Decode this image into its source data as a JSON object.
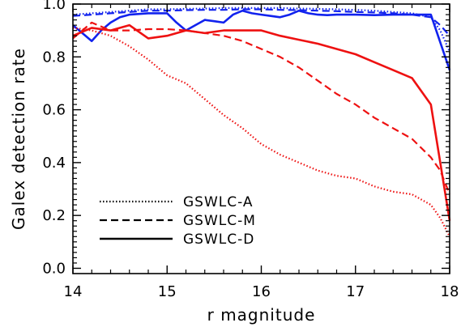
{
  "chart_data": {
    "type": "line",
    "xlabel": "r magnitude",
    "ylabel": "Galex detection rate",
    "xlim": [
      14,
      18
    ],
    "ylim": [
      -0.02,
      1.0
    ],
    "xticks": [
      14,
      15,
      16,
      17,
      18
    ],
    "yticks": [
      0.0,
      0.2,
      0.4,
      0.6,
      0.8,
      1.0
    ],
    "xtick_labels": [
      "14",
      "15",
      "16",
      "17",
      "18"
    ],
    "ytick_labels": [
      "0.0",
      "0.2",
      "0.4",
      "0.6",
      "0.8",
      "1.0"
    ],
    "legend": {
      "position": "lower-left",
      "entries": [
        {
          "label": "GSWLC-A",
          "style": "dotted"
        },
        {
          "label": "GSWLC-M",
          "style": "dashed"
        },
        {
          "label": "GSWLC-D",
          "style": "solid"
        }
      ]
    },
    "colors": {
      "red": "#ee1111",
      "blue": "#1122ee"
    },
    "series": [
      {
        "color": "blue",
        "style": "dotted",
        "x": [
          14.0,
          14.2,
          14.4,
          14.6,
          14.8,
          15.0,
          15.2,
          15.4,
          15.6,
          15.8,
          16.0,
          16.2,
          16.4,
          16.6,
          16.8,
          17.0,
          17.2,
          17.4,
          17.6,
          17.8,
          17.9,
          18.0
        ],
        "y": [
          0.96,
          0.965,
          0.97,
          0.975,
          0.98,
          0.98,
          0.982,
          0.983,
          0.985,
          0.985,
          0.985,
          0.985,
          0.983,
          0.982,
          0.98,
          0.978,
          0.975,
          0.97,
          0.965,
          0.95,
          0.9,
          0.82
        ]
      },
      {
        "color": "blue",
        "style": "dashed",
        "x": [
          14.0,
          14.2,
          14.4,
          14.6,
          14.8,
          15.0,
          15.2,
          15.4,
          15.6,
          15.8,
          16.0,
          16.2,
          16.4,
          16.6,
          16.8,
          17.0,
          17.2,
          17.4,
          17.6,
          17.8,
          17.9,
          18.0
        ],
        "y": [
          0.955,
          0.96,
          0.965,
          0.97,
          0.975,
          0.975,
          0.977,
          0.978,
          0.978,
          0.98,
          0.98,
          0.978,
          0.977,
          0.975,
          0.973,
          0.97,
          0.968,
          0.965,
          0.96,
          0.95,
          0.92,
          0.88
        ]
      },
      {
        "color": "blue",
        "style": "solid",
        "x": [
          14.0,
          14.1,
          14.2,
          14.3,
          14.4,
          14.5,
          14.6,
          14.8,
          15.0,
          15.1,
          15.2,
          15.3,
          15.4,
          15.5,
          15.6,
          15.7,
          15.8,
          15.9,
          16.0,
          16.1,
          16.2,
          16.3,
          16.4,
          16.5,
          16.6,
          16.7,
          16.8,
          17.0,
          17.2,
          17.4,
          17.6,
          17.8,
          18.0
        ],
        "y": [
          0.92,
          0.89,
          0.86,
          0.9,
          0.93,
          0.95,
          0.96,
          0.965,
          0.965,
          0.93,
          0.9,
          0.92,
          0.94,
          0.935,
          0.93,
          0.96,
          0.975,
          0.965,
          0.96,
          0.955,
          0.95,
          0.96,
          0.975,
          0.965,
          0.96,
          0.958,
          0.96,
          0.96,
          0.958,
          0.96,
          0.96,
          0.96,
          0.75
        ]
      },
      {
        "color": "red",
        "style": "dotted",
        "x": [
          14.0,
          14.2,
          14.4,
          14.6,
          14.8,
          15.0,
          15.2,
          15.4,
          15.6,
          15.8,
          16.0,
          16.2,
          16.4,
          16.6,
          16.8,
          17.0,
          17.2,
          17.4,
          17.6,
          17.8,
          17.9,
          18.0
        ],
        "y": [
          0.91,
          0.9,
          0.88,
          0.84,
          0.79,
          0.73,
          0.7,
          0.64,
          0.58,
          0.53,
          0.47,
          0.43,
          0.4,
          0.37,
          0.35,
          0.34,
          0.31,
          0.29,
          0.28,
          0.24,
          0.19,
          0.12
        ]
      },
      {
        "color": "red",
        "style": "dashed",
        "x": [
          14.0,
          14.2,
          14.4,
          14.6,
          14.8,
          15.0,
          15.2,
          15.4,
          15.6,
          15.8,
          16.0,
          16.2,
          16.4,
          16.6,
          16.8,
          17.0,
          17.2,
          17.4,
          17.6,
          17.8,
          17.9,
          18.0
        ],
        "y": [
          0.87,
          0.93,
          0.9,
          0.9,
          0.905,
          0.905,
          0.9,
          0.89,
          0.88,
          0.86,
          0.83,
          0.8,
          0.76,
          0.71,
          0.66,
          0.62,
          0.57,
          0.53,
          0.49,
          0.42,
          0.37,
          0.28
        ]
      },
      {
        "color": "red",
        "style": "solid",
        "x": [
          14.0,
          14.2,
          14.4,
          14.6,
          14.8,
          15.0,
          15.2,
          15.4,
          15.6,
          15.8,
          16.0,
          16.2,
          16.4,
          16.6,
          16.8,
          17.0,
          17.2,
          17.4,
          17.6,
          17.8,
          18.0
        ],
        "y": [
          0.88,
          0.91,
          0.9,
          0.92,
          0.87,
          0.88,
          0.9,
          0.89,
          0.9,
          0.9,
          0.9,
          0.88,
          0.865,
          0.85,
          0.83,
          0.81,
          0.78,
          0.75,
          0.72,
          0.62,
          0.18
        ]
      }
    ]
  }
}
